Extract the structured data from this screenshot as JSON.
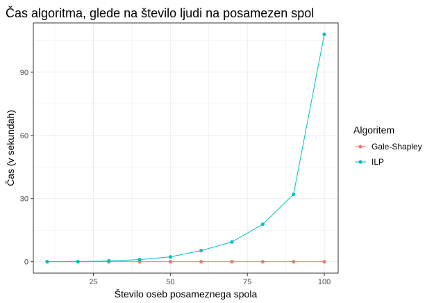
{
  "chart_data": {
    "type": "line",
    "title": "Čas algoritma, glede na število ljudi na posamezen spol",
    "xlabel": "Število oseb posameznega spola",
    "ylabel": "Čas (v sekundah)",
    "x": [
      10,
      20,
      30,
      40,
      50,
      60,
      70,
      80,
      90,
      100
    ],
    "xlim": [
      5.5,
      104.5
    ],
    "ylim": [
      -5.4,
      113.4
    ],
    "x_ticks": [
      25,
      50,
      75,
      100
    ],
    "y_ticks": [
      0,
      30,
      60,
      90
    ],
    "grid": true,
    "legend": {
      "title": "Algoritem",
      "placement": "right"
    },
    "series": [
      {
        "name": "Gale-Shapley",
        "color": "#F8766D",
        "values": [
          0,
          0,
          0,
          0,
          0,
          0,
          0,
          0,
          0,
          0
        ]
      },
      {
        "name": "ILP",
        "color": "#00BFC4",
        "values": [
          0,
          0.05,
          0.4,
          1.0,
          2.3,
          5.3,
          9.4,
          17.8,
          32.0,
          108.0
        ]
      }
    ]
  }
}
